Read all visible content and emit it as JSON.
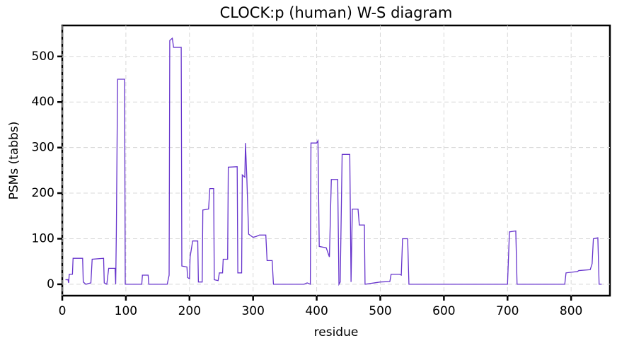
{
  "chart_data": {
    "type": "line",
    "title": "CLOCK:p (human) W-S diagram",
    "x_label": "residue",
    "y_label": "PSMs (tabbs)",
    "xlim": [
      0,
      861
    ],
    "ylim": [
      -25,
      568
    ],
    "xticks": [
      0,
      100,
      200,
      300,
      400,
      500,
      600,
      700,
      800
    ],
    "yticks": [
      0,
      100,
      200,
      300,
      400,
      500
    ],
    "grid": true,
    "series": [
      {
        "color": "#6633cc",
        "x": [
          5,
          9,
          10,
          11,
          16,
          17,
          32,
          33,
          37,
          45,
          47,
          65,
          66,
          70,
          73,
          83,
          84,
          85,
          87,
          98,
          99,
          125,
          126,
          135,
          136,
          165,
          168,
          169,
          173,
          175,
          187,
          188,
          196,
          197,
          200,
          201,
          205,
          213,
          214,
          220,
          221,
          230,
          232,
          238,
          239,
          245,
          247,
          252,
          253,
          260,
          261,
          275,
          276,
          282,
          283,
          287,
          288,
          290,
          293,
          300,
          305,
          310,
          320,
          322,
          330,
          332,
          380,
          385,
          390,
          391,
          400,
          402,
          404,
          415,
          420,
          423,
          433,
          435,
          437,
          440,
          452,
          454,
          456,
          465,
          467,
          475,
          476,
          500,
          515,
          517,
          530,
          533,
          535,
          543,
          545,
          600,
          650,
          700,
          703,
          713,
          715,
          790,
          792,
          810,
          812,
          830,
          833,
          835,
          842,
          844,
          848
        ],
        "values": [
          10,
          10,
          3,
          22,
          22,
          57,
          57,
          5,
          0,
          3,
          55,
          57,
          3,
          0,
          35,
          35,
          0,
          112,
          450,
          450,
          0,
          0,
          20,
          20,
          0,
          0,
          20,
          535,
          540,
          520,
          520,
          40,
          38,
          15,
          12,
          60,
          95,
          95,
          5,
          5,
          163,
          165,
          210,
          210,
          10,
          8,
          25,
          25,
          55,
          55,
          257,
          258,
          25,
          25,
          240,
          235,
          310,
          240,
          110,
          103,
          105,
          108,
          108,
          52,
          52,
          0,
          0,
          3,
          0,
          310,
          310,
          315,
          83,
          80,
          60,
          230,
          230,
          0,
          5,
          285,
          285,
          5,
          165,
          165,
          130,
          130,
          0,
          5,
          6,
          22,
          22,
          20,
          100,
          100,
          0,
          0,
          0,
          0,
          115,
          117,
          0,
          0,
          25,
          28,
          30,
          32,
          45,
          100,
          102,
          0,
          0
        ]
      }
    ]
  }
}
